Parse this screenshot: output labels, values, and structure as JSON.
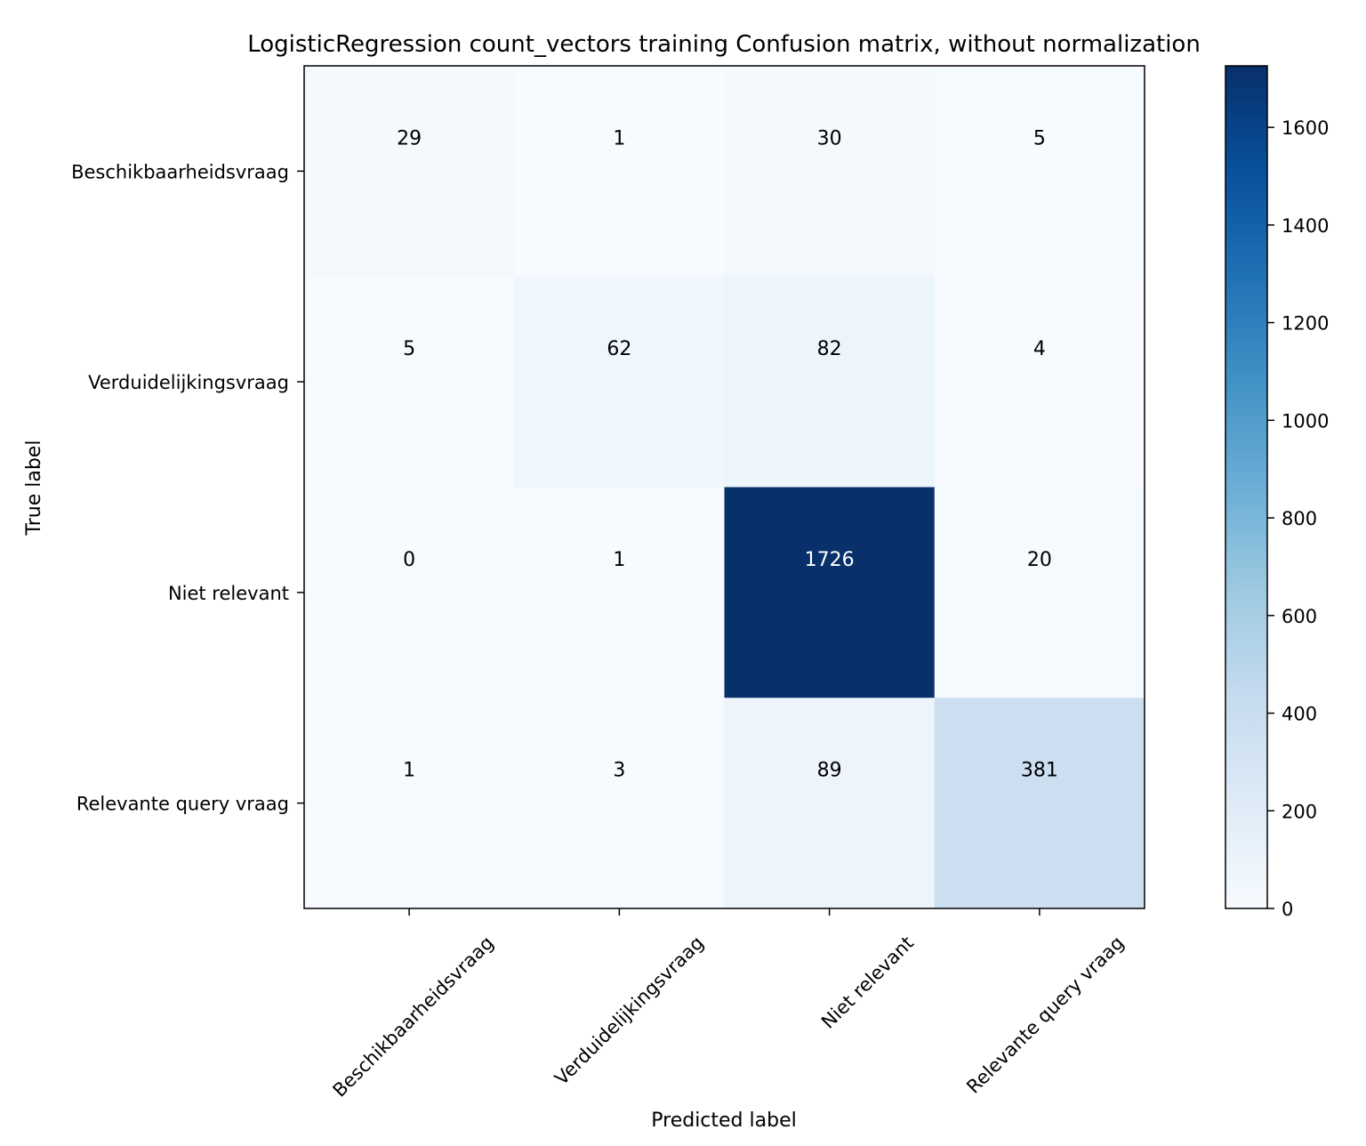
{
  "chart_data": {
    "type": "heatmap",
    "title": "LogisticRegression count_vectors training Confusion matrix, without normalization",
    "xlabel": "Predicted label",
    "ylabel": "True label",
    "x_categories": [
      "Beschikbaarheidsvraag",
      "Verduidelijkingsvraag",
      "Niet relevant",
      "Relevante query vraag"
    ],
    "y_categories": [
      "Beschikbaarheidsvraag",
      "Verduidelijkingsvraag",
      "Niet relevant",
      "Relevante query vraag"
    ],
    "values": [
      [
        29,
        1,
        30,
        5
      ],
      [
        5,
        62,
        82,
        4
      ],
      [
        0,
        1,
        1726,
        20
      ],
      [
        1,
        3,
        89,
        381
      ]
    ],
    "colormap": "Blues",
    "colorbar": {
      "range": [
        0,
        1726
      ],
      "ticks": [
        0,
        200,
        400,
        600,
        800,
        1000,
        1200,
        1400,
        1600
      ]
    },
    "text_color_light": "#ffffff",
    "text_color_dark": "#000000",
    "grid": false
  }
}
